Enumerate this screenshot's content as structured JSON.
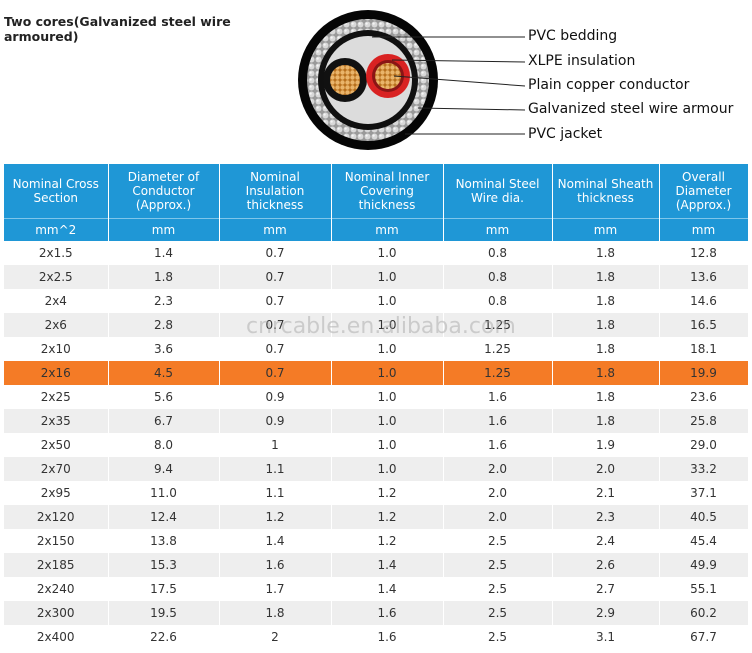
{
  "title": "Two cores(Galvanized steel wire armoured)",
  "callouts": [
    "PVC bedding",
    "XLPE insulation",
    "Plain copper conductor",
    "Galvanized steel wire armour",
    "PVC jacket"
  ],
  "watermark": "cnrcable.en.alibaba.com",
  "table": {
    "headers": [
      "Nominal Cross Section",
      "Diameter of Conductor (Approx.)",
      "Nominal Insulation thickness",
      "Nominal Inner Covering thickness",
      "Nominal Steel Wire dia.",
      "Nominal Sheath thickness",
      "Overall Diameter (Approx.)"
    ],
    "units": [
      "mm^2",
      "mm",
      "mm",
      "mm",
      "mm",
      "mm",
      "mm"
    ],
    "rows": [
      [
        "2x1.5",
        "1.4",
        "0.7",
        "1.0",
        "0.8",
        "1.8",
        "12.8"
      ],
      [
        "2x2.5",
        "1.8",
        "0.7",
        "1.0",
        "0.8",
        "1.8",
        "13.6"
      ],
      [
        "2x4",
        "2.3",
        "0.7",
        "1.0",
        "0.8",
        "1.8",
        "14.6"
      ],
      [
        "2x6",
        "2.8",
        "0.7",
        "1.0",
        "1.25",
        "1.8",
        "16.5"
      ],
      [
        "2x10",
        "3.6",
        "0.7",
        "1.0",
        "1.25",
        "1.8",
        "18.1"
      ],
      [
        "2x16",
        "4.5",
        "0.7",
        "1.0",
        "1.25",
        "1.8",
        "19.9"
      ],
      [
        "2x25",
        "5.6",
        "0.9",
        "1.0",
        "1.6",
        "1.8",
        "23.6"
      ],
      [
        "2x35",
        "6.7",
        "0.9",
        "1.0",
        "1.6",
        "1.8",
        "25.8"
      ],
      [
        "2x50",
        "8.0",
        "1",
        "1.0",
        "1.6",
        "1.9",
        "29.0"
      ],
      [
        "2x70",
        "9.4",
        "1.1",
        "1.0",
        "2.0",
        "2.0",
        "33.2"
      ],
      [
        "2x95",
        "11.0",
        "1.1",
        "1.2",
        "2.0",
        "2.1",
        "37.1"
      ],
      [
        "2x120",
        "12.4",
        "1.2",
        "1.2",
        "2.0",
        "2.3",
        "40.5"
      ],
      [
        "2x150",
        "13.8",
        "1.4",
        "1.2",
        "2.5",
        "2.4",
        "45.4"
      ],
      [
        "2x185",
        "15.3",
        "1.6",
        "1.4",
        "2.5",
        "2.6",
        "49.9"
      ],
      [
        "2x240",
        "17.5",
        "1.7",
        "1.4",
        "2.5",
        "2.7",
        "55.1"
      ],
      [
        "2x300",
        "19.5",
        "1.8",
        "1.6",
        "2.5",
        "2.9",
        "60.2"
      ],
      [
        "2x400",
        "22.6",
        "2",
        "1.6",
        "2.5",
        "3.1",
        "67.7"
      ]
    ],
    "highlight_row": "2x16"
  },
  "colors": {
    "header_bg": "#1f97d6",
    "highlight": "#f47b26",
    "alt_row": "#eeeeee"
  }
}
